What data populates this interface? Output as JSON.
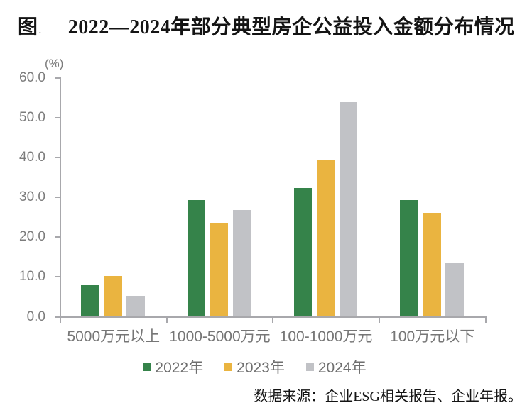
{
  "figure": {
    "label": "图",
    "label_dot": ".",
    "title": "2022—2024年部分典型房企公益投入金额分布情况"
  },
  "source_note": "数据来源：企业ESG相关报告、企业年报。",
  "colors": {
    "series_2022": "#35834A",
    "series_2023": "#EAB440",
    "series_2024": "#C1C2C6",
    "axis": "#A8A8AC",
    "axis_text": "#7C7C7C",
    "legend_text": "#6F6F6F",
    "title_text": "#141414"
  },
  "chart_data": {
    "type": "bar",
    "title": "2022—2024年部分典型房企公益投入金额分布情况",
    "unit_label": "(%)",
    "xlabel": "",
    "ylabel": "(%)",
    "categories": [
      "5000万元以上",
      "1000-5000万元",
      "100-1000万元",
      "100万元以下"
    ],
    "series": [
      {
        "name": "2022年",
        "color": "#35834A",
        "values": [
          7.9,
          29.4,
          32.4,
          29.4
        ]
      },
      {
        "name": "2023年",
        "color": "#EAB440",
        "values": [
          10.3,
          23.7,
          39.4,
          26.2
        ]
      },
      {
        "name": "2024年",
        "color": "#C1C2C6",
        "values": [
          5.3,
          26.9,
          54.0,
          13.4
        ]
      }
    ],
    "ylim": [
      0,
      60
    ],
    "ytick_step": 10,
    "ytick_labels": [
      "0.0",
      "10.0",
      "20.0",
      "30.0",
      "40.0",
      "50.0",
      "60.0"
    ],
    "grid": false,
    "legend_position": "bottom"
  }
}
